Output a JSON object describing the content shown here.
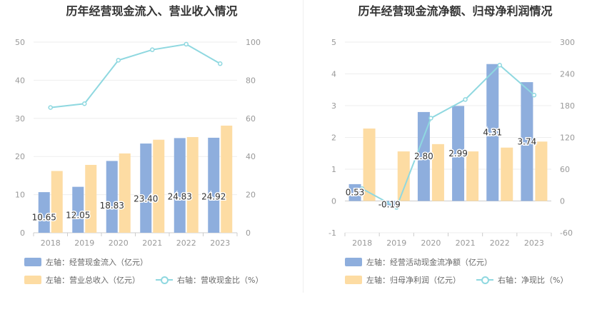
{
  "colors": {
    "blue_bar": "#8eaedd",
    "orange_bar": "#fddca3",
    "line": "#8fd8e0",
    "axis_text": "#999999",
    "grid": "#eeeeee"
  },
  "chart_data": [
    {
      "type": "bar",
      "title": "历年经营现金流入、营业收入情况",
      "categories": [
        "2018",
        "2019",
        "2020",
        "2021",
        "2022",
        "2023"
      ],
      "y_left": {
        "ticks": [
          0,
          10,
          20,
          30,
          40,
          50
        ],
        "range": [
          0,
          50
        ]
      },
      "y_right": {
        "ticks": [
          0,
          20,
          40,
          60,
          80,
          100
        ],
        "range": [
          0,
          100
        ]
      },
      "series": [
        {
          "name": "左轴：经营现金流入（亿元）",
          "kind": "bar",
          "axis": "left",
          "color": "#8eaedd",
          "values": [
            10.65,
            12.05,
            18.83,
            23.4,
            24.83,
            24.92
          ],
          "labels": [
            "10.65",
            "12.05",
            "18.83",
            "23.40",
            "24.83",
            "24.92"
          ]
        },
        {
          "name": "左轴：营业总收入（亿元）",
          "kind": "bar",
          "axis": "left",
          "color": "#fddca3",
          "values": [
            16.2,
            17.8,
            20.8,
            24.4,
            25.1,
            28.1
          ]
        },
        {
          "name": "右轴：营收现金比（%）",
          "kind": "line",
          "axis": "right",
          "color": "#8fd8e0",
          "values": [
            65.7,
            67.7,
            90.5,
            96.0,
            98.9,
            88.7
          ]
        }
      ],
      "grid": true
    },
    {
      "type": "bar",
      "title": "历年经营现金流净额、归母净利润情况",
      "categories": [
        "2018",
        "2019",
        "2020",
        "2021",
        "2022",
        "2023"
      ],
      "y_left": {
        "ticks": [
          -1,
          0,
          1,
          2,
          3,
          4,
          5
        ],
        "range": [
          -1,
          5
        ]
      },
      "y_right": {
        "ticks": [
          -60,
          0,
          60,
          120,
          180,
          240,
          300
        ],
        "range": [
          -60,
          300
        ]
      },
      "series": [
        {
          "name": "左轴：经营活动现金流净额（亿元）",
          "kind": "bar",
          "axis": "left",
          "color": "#8eaedd",
          "values": [
            0.53,
            -0.19,
            2.8,
            2.99,
            4.31,
            3.74
          ],
          "labels": [
            "0.53",
            "-0.19",
            "2.80",
            "2.99",
            "4.31",
            "3.74"
          ]
        },
        {
          "name": "左轴：归母净利润（亿元）",
          "kind": "bar",
          "axis": "left",
          "color": "#fddca3",
          "values": [
            2.28,
            1.56,
            1.79,
            1.56,
            1.68,
            1.87
          ]
        },
        {
          "name": "右轴：净现比（%）",
          "kind": "line",
          "axis": "right",
          "color": "#8fd8e0",
          "values": [
            23.2,
            -12.2,
            156.4,
            191.7,
            256.5,
            200.0
          ]
        }
      ],
      "grid": true
    }
  ]
}
